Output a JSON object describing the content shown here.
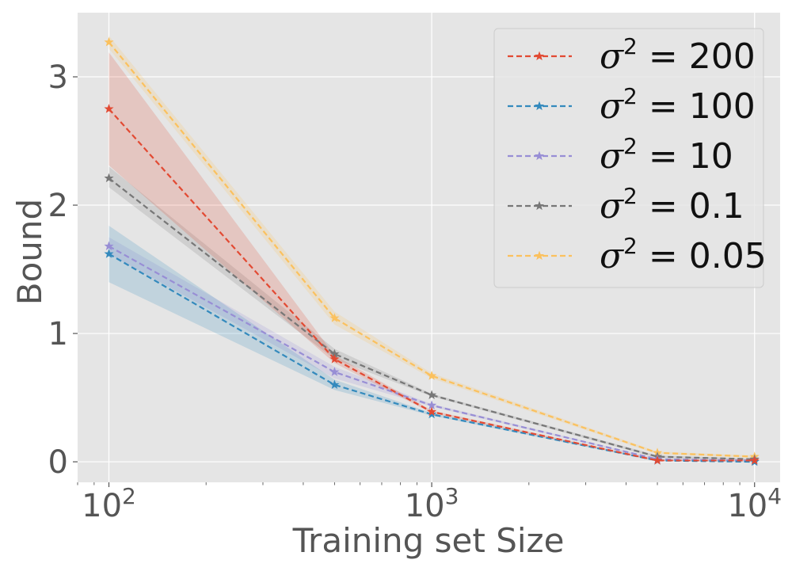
{
  "chart_data": {
    "type": "line",
    "title": "",
    "xlabel": "Training set Size",
    "ylabel": "Bound",
    "xscale": "log",
    "xlim": [
      80,
      12000
    ],
    "ylim": [
      -0.16,
      3.5
    ],
    "grid": true,
    "legend_position": "top-right",
    "x": [
      100,
      500,
      1000,
      5000,
      10000
    ],
    "x_ticks": [
      {
        "value": 100,
        "base": "10",
        "exp": "2"
      },
      {
        "value": 1000,
        "base": "10",
        "exp": "3"
      },
      {
        "value": 10000,
        "base": "10",
        "exp": "4"
      }
    ],
    "y_ticks": [
      {
        "value": 0,
        "label": "0"
      },
      {
        "value": 1,
        "label": "1"
      },
      {
        "value": 2,
        "label": "2"
      },
      {
        "value": 3,
        "label": "3"
      }
    ],
    "series": [
      {
        "name": "σ² = 0.05",
        "legend_value": "0.05",
        "color": "#fbc15e",
        "values": [
          3.27,
          1.12,
          0.67,
          0.07,
          0.04
        ],
        "lower": [
          3.22,
          1.07,
          0.65,
          0.06,
          0.03
        ],
        "upper": [
          3.32,
          1.17,
          0.69,
          0.08,
          0.05
        ]
      },
      {
        "name": "σ² = 0.1",
        "legend_value": "0.1",
        "color": "#777777",
        "values": [
          2.21,
          0.84,
          0.52,
          0.04,
          0.02
        ],
        "lower": [
          2.14,
          0.8,
          0.51,
          0.03,
          0.015
        ],
        "upper": [
          2.3,
          0.88,
          0.53,
          0.05,
          0.025
        ]
      },
      {
        "name": "σ² = 10",
        "legend_value": "10",
        "color": "#988ed5",
        "values": [
          1.68,
          0.7,
          0.44,
          0.02,
          0.01
        ],
        "lower": [
          1.62,
          0.65,
          0.43,
          0.015,
          0.005
        ],
        "upper": [
          1.75,
          0.74,
          0.45,
          0.025,
          0.015
        ]
      },
      {
        "name": "σ² = 100",
        "legend_value": "100",
        "color": "#348abd",
        "values": [
          1.62,
          0.6,
          0.37,
          0.01,
          0.0
        ],
        "lower": [
          1.4,
          0.56,
          0.36,
          0.005,
          -0.005
        ],
        "upper": [
          1.84,
          0.64,
          0.38,
          0.015,
          0.005
        ]
      },
      {
        "name": "σ² = 200",
        "legend_value": "200",
        "color": "#e24a33",
        "values": [
          2.75,
          0.8,
          0.39,
          0.01,
          0.01
        ],
        "lower": [
          2.31,
          0.77,
          0.38,
          0.005,
          0.005
        ],
        "upper": [
          3.19,
          0.83,
          0.4,
          0.015,
          0.015
        ]
      }
    ],
    "legend_order": [
      4,
      3,
      2,
      1,
      0
    ],
    "legend_prefix": "σ",
    "legend_power": "2",
    "legend_equals": "="
  }
}
